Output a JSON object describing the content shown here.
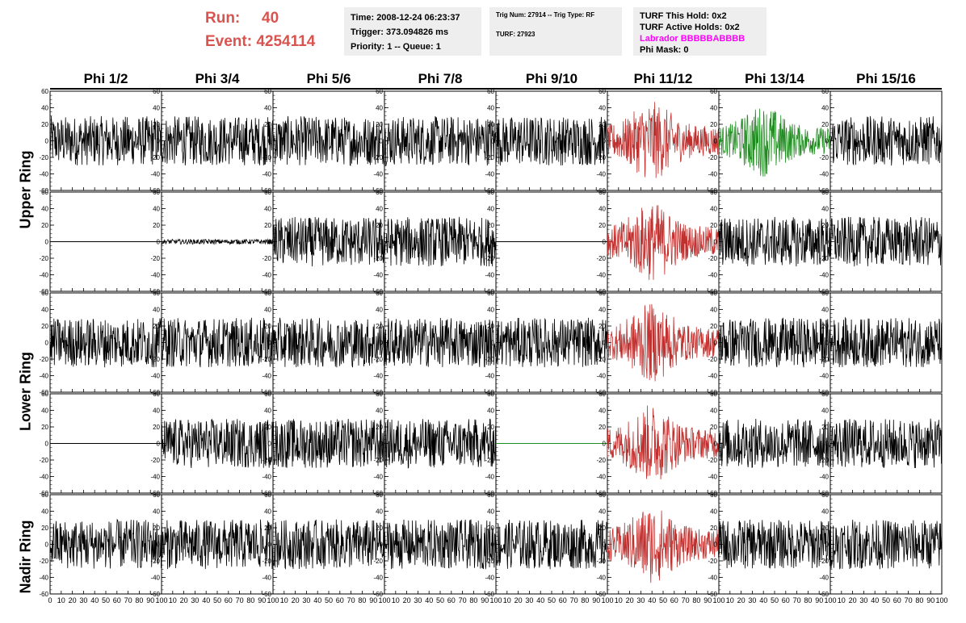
{
  "run": {
    "run_label": "Run:",
    "run_value": "40",
    "event_label": "Event:",
    "event_value": "4254114"
  },
  "info1": {
    "time": "Time: 2008-12-24 06:23:37",
    "trigger": "Trigger: 373.094826 ms",
    "priority": "Priority: 1 -- Queue: 1"
  },
  "info2": {
    "trig": "Trig Num: 27914 -- Trig Type: RF",
    "turf": "TURF: 27923"
  },
  "info3": {
    "hold": "TURF This Hold: 0x2",
    "active": "TURF Active Holds: 0x2",
    "labrador": "Labrador BBBBBABBBB",
    "phimask": "Phi Mask: 0"
  },
  "colors": {
    "title": "#d9534f",
    "labrador": "#ff00ff",
    "red_trace": "#c0302e",
    "green_trace": "#1e8c1e",
    "panel_bg": "#eeeeee"
  },
  "phi_headers": [
    "Phi 1/2",
    "Phi 3/4",
    "Phi 5/6",
    "Phi 7/8",
    "Phi 9/10",
    "Phi 11/12",
    "Phi 13/14",
    "Phi 15/16"
  ],
  "ring_labels": {
    "upper": "Upper Ring",
    "lower": "Lower Ring",
    "nadir": "Nadir Ring"
  },
  "axis": {
    "y_ticks": [
      "60",
      "40",
      "20",
      "0",
      "-20",
      "-40",
      "-60"
    ],
    "x_ticks": [
      "0",
      "10",
      "20",
      "30",
      "40",
      "50",
      "60",
      "70",
      "80",
      "90",
      "100"
    ],
    "ylim": [
      -60,
      60
    ],
    "xlim": [
      0,
      100
    ]
  },
  "chart_data": {
    "type": "line",
    "title": "",
    "xlabel": "",
    "ylabel": "",
    "rows": 5,
    "columns": 8,
    "flat_panels": [
      [
        1,
        0
      ],
      [
        1,
        4
      ],
      [
        3,
        0
      ],
      [
        3,
        4
      ]
    ],
    "flat_panel_colors": {
      "3,4": "green"
    },
    "small_amplitude_panels": [
      [
        1,
        1
      ]
    ],
    "red_column": 5,
    "green_panels": [
      [
        0,
        6
      ]
    ],
    "approx_amplitude": 30
  }
}
